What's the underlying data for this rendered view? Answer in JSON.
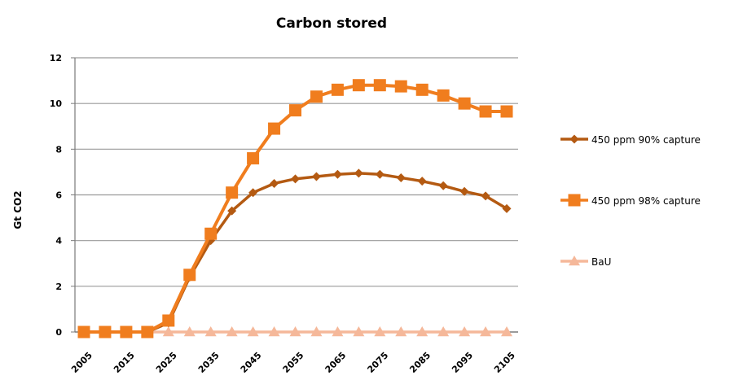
{
  "chart_data": {
    "type": "line",
    "title": "Carbon stored",
    "xlabel": "",
    "ylabel": "Gt CO2",
    "ylim": [
      0,
      12
    ],
    "yticks": [
      0,
      2,
      4,
      6,
      8,
      10,
      12
    ],
    "grid": true,
    "legend_position": "right",
    "x": [
      2005,
      2010,
      2015,
      2020,
      2025,
      2030,
      2035,
      2040,
      2045,
      2050,
      2055,
      2060,
      2065,
      2070,
      2075,
      2080,
      2085,
      2090,
      2095,
      2100,
      2105
    ],
    "x_tick_labels": [
      "2005",
      "2015",
      "2025",
      "2035",
      "2045",
      "2055",
      "2065",
      "2075",
      "2085",
      "2095",
      "2105"
    ],
    "series": [
      {
        "name": "450 ppm 90% capture",
        "color": "#b45a12",
        "marker": "diamond",
        "values": [
          0,
          0,
          0,
          0,
          0.4,
          2.4,
          4.0,
          5.3,
          6.1,
          6.5,
          6.7,
          6.8,
          6.9,
          6.95,
          6.9,
          6.75,
          6.6,
          6.4,
          6.15,
          5.95,
          5.4
        ]
      },
      {
        "name": "450 ppm 98% capture",
        "color": "#f07d1e",
        "marker": "square",
        "values": [
          0,
          0,
          0,
          0,
          0.5,
          2.5,
          4.3,
          6.1,
          7.6,
          8.9,
          9.7,
          10.3,
          10.6,
          10.8,
          10.8,
          10.75,
          10.6,
          10.35,
          10.0,
          9.65,
          9.65
        ]
      },
      {
        "name": "BaU",
        "color": "#f5b89a",
        "marker": "triangle",
        "values": [
          0,
          0,
          0,
          0,
          0,
          0,
          0,
          0,
          0,
          0,
          0,
          0,
          0,
          0,
          0,
          0,
          0,
          0,
          0,
          0,
          0
        ]
      }
    ]
  }
}
